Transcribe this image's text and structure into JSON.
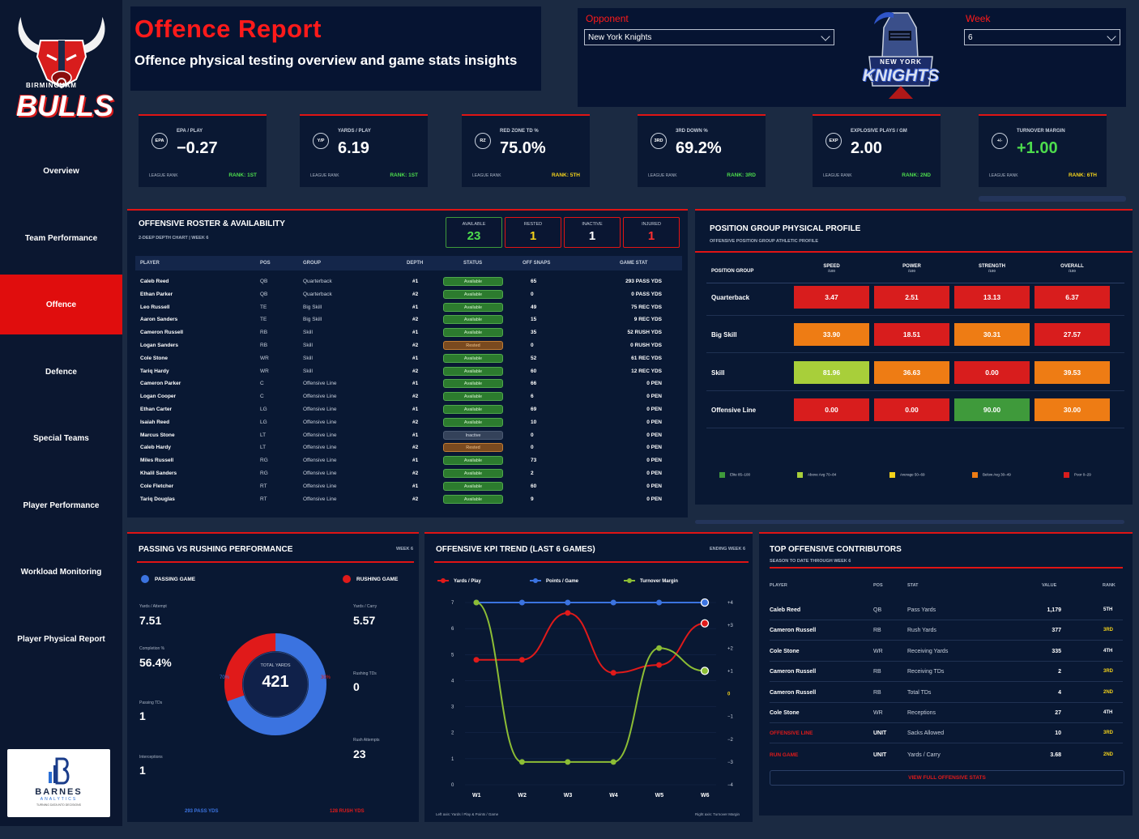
{
  "sidebar": {
    "team_name": "BIRMINGHAM",
    "team_word": "BULLS",
    "items": [
      {
        "label": "Overview"
      },
      {
        "label": "Team Performance"
      },
      {
        "label": "Offence"
      },
      {
        "label": "Defence"
      },
      {
        "label": "Special Teams"
      },
      {
        "label": "Player Performance"
      },
      {
        "label": "Workload Monitoring"
      },
      {
        "label": "Player Physical Report"
      }
    ],
    "brand": "BARNES",
    "brand_sub": "ANALYTICS",
    "brand_tag": "TURNING DATA INTO DECISIONS"
  },
  "header": {
    "title": "Offence Report",
    "subtitle": "Offence physical testing overview and game stats insights"
  },
  "filters": {
    "opponent_label": "Opponent",
    "opponent_value": "New York Knights",
    "week_label": "Week",
    "week_value": "6",
    "opponent_logo_text": "NEW YORK",
    "opponent_logo_word": "KNIGHTS"
  },
  "kpis": [
    {
      "icon": "EPA",
      "label": "EPA / PLAY",
      "value": "−0.27",
      "league_rank": "LEAGUE RANK",
      "rank": "RANK: 1ST",
      "rank_color": "green"
    },
    {
      "icon": "Y/P",
      "label": "YARDS / PLAY",
      "value": "6.19",
      "league_rank": "LEAGUE RANK",
      "rank": "RANK: 1ST",
      "rank_color": "green"
    },
    {
      "icon": "RZ",
      "label": "RED ZONE TD %",
      "value": "75.0%",
      "league_rank": "LEAGUE RANK",
      "rank": "RANK: 5TH",
      "rank_color": "yellow"
    },
    {
      "icon": "3RD",
      "label": "3RD DOWN %",
      "value": "69.2%",
      "league_rank": "LEAGUE RANK",
      "rank": "RANK: 3RD",
      "rank_color": "green"
    },
    {
      "icon": "EXP",
      "label": "EXPLOSIVE PLAYS / GM",
      "value": "2.00",
      "league_rank": "LEAGUE RANK",
      "rank": "RANK: 2ND",
      "rank_color": "green"
    },
    {
      "icon": "+/-",
      "label": "TURNOVER MARGIN",
      "value": "+1.00",
      "league_rank": "LEAGUE RANK",
      "rank": "RANK: 6TH",
      "rank_color": "yellow"
    }
  ],
  "roster": {
    "title": "OFFENSIVE ROSTER & AVAILABILITY",
    "subtitle": "2-DEEP DEPTH CHART | WEEK 6",
    "tiles": [
      {
        "label": "AVAILABLE",
        "value": "23",
        "color": "#4ddc4d"
      },
      {
        "label": "RESTED",
        "value": "1",
        "color": "#f3d21b"
      },
      {
        "label": "INACTIVE",
        "value": "1",
        "color": "#ffffff"
      },
      {
        "label": "INJURED",
        "value": "1",
        "color": "#ff3030"
      }
    ],
    "columns": [
      "PLAYER",
      "POS",
      "GROUP",
      "DEPTH",
      "STATUS",
      "OFF SNAPS",
      "GAME STAT"
    ],
    "rows": [
      {
        "player": "Caleb Reed",
        "pos": "QB",
        "group": "Quarterback",
        "depth": "#1",
        "status": "Available",
        "snaps": "65",
        "stat": "293 PASS YDS"
      },
      {
        "player": "Ethan Parker",
        "pos": "QB",
        "group": "Quarterback",
        "depth": "#2",
        "status": "Available",
        "snaps": "0",
        "stat": "0 PASS YDS"
      },
      {
        "player": "Leo Russell",
        "pos": "TE",
        "group": "Big Skill",
        "depth": "#1",
        "status": "Available",
        "snaps": "49",
        "stat": "75 REC YDS"
      },
      {
        "player": "Aaron Sanders",
        "pos": "TE",
        "group": "Big Skill",
        "depth": "#2",
        "status": "Available",
        "snaps": "15",
        "stat": "9 REC YDS"
      },
      {
        "player": "Cameron Russell",
        "pos": "RB",
        "group": "Skill",
        "depth": "#1",
        "status": "Available",
        "snaps": "35",
        "stat": "52 RUSH YDS"
      },
      {
        "player": "Logan Sanders",
        "pos": "RB",
        "group": "Skill",
        "depth": "#2",
        "status": "Rested",
        "snaps": "0",
        "stat": "0 RUSH YDS"
      },
      {
        "player": "Cole Stone",
        "pos": "WR",
        "group": "Skill",
        "depth": "#1",
        "status": "Available",
        "snaps": "52",
        "stat": "61 REC YDS"
      },
      {
        "player": "Tariq Hardy",
        "pos": "WR",
        "group": "Skill",
        "depth": "#2",
        "status": "Available",
        "snaps": "60",
        "stat": "12 REC YDS"
      },
      {
        "player": "Cameron Parker",
        "pos": "C",
        "group": "Offensive Line",
        "depth": "#1",
        "status": "Available",
        "snaps": "66",
        "stat": "0 PEN"
      },
      {
        "player": "Logan Cooper",
        "pos": "C",
        "group": "Offensive Line",
        "depth": "#2",
        "status": "Available",
        "snaps": "6",
        "stat": "0 PEN"
      },
      {
        "player": "Ethan Carter",
        "pos": "LG",
        "group": "Offensive Line",
        "depth": "#1",
        "status": "Available",
        "snaps": "69",
        "stat": "0 PEN"
      },
      {
        "player": "Isaiah Reed",
        "pos": "LG",
        "group": "Offensive Line",
        "depth": "#2",
        "status": "Available",
        "snaps": "10",
        "stat": "0 PEN"
      },
      {
        "player": "Marcus Stone",
        "pos": "LT",
        "group": "Offensive Line",
        "depth": "#1",
        "status": "Inactive",
        "snaps": "0",
        "stat": "0 PEN"
      },
      {
        "player": "Caleb Hardy",
        "pos": "LT",
        "group": "Offensive Line",
        "depth": "#2",
        "status": "Rested",
        "snaps": "0",
        "stat": "0 PEN"
      },
      {
        "player": "Miles Russell",
        "pos": "RG",
        "group": "Offensive Line",
        "depth": "#1",
        "status": "Available",
        "snaps": "73",
        "stat": "0 PEN"
      },
      {
        "player": "Khalil Sanders",
        "pos": "RG",
        "group": "Offensive Line",
        "depth": "#2",
        "status": "Available",
        "snaps": "2",
        "stat": "0 PEN"
      },
      {
        "player": "Cole Fletcher",
        "pos": "RT",
        "group": "Offensive Line",
        "depth": "#1",
        "status": "Available",
        "snaps": "60",
        "stat": "0 PEN"
      },
      {
        "player": "Tariq Douglas",
        "pos": "RT",
        "group": "Offensive Line",
        "depth": "#2",
        "status": "Available",
        "snaps": "9",
        "stat": "0 PEN"
      }
    ]
  },
  "physical": {
    "title": "POSITION GROUP PHYSICAL PROFILE",
    "subtitle": "OFFENSIVE POSITION GROUP ATHLETIC PROFILE",
    "group_header": "POSITION GROUP",
    "columns": [
      {
        "label": "SPEED",
        "sub": "/100"
      },
      {
        "label": "POWER",
        "sub": "/100"
      },
      {
        "label": "STRENGTH",
        "sub": "/100"
      },
      {
        "label": "OVERALL",
        "sub": "/100"
      }
    ],
    "rows": [
      {
        "group": "Quarterback",
        "values": [
          "3.47",
          "2.51",
          "13.13",
          "6.37"
        ],
        "colors": [
          "#d81d1d",
          "#d81d1d",
          "#d81d1d",
          "#d81d1d"
        ]
      },
      {
        "group": "Big Skill",
        "values": [
          "33.90",
          "18.51",
          "30.31",
          "27.57"
        ],
        "colors": [
          "#ee7c14",
          "#d81d1d",
          "#ee7c14",
          "#d81d1d"
        ]
      },
      {
        "group": "Skill",
        "values": [
          "81.96",
          "36.63",
          "0.00",
          "39.53"
        ],
        "colors": [
          "#a8cf3a",
          "#ee7c14",
          "#d81d1d",
          "#ee7c14"
        ]
      },
      {
        "group": "Offensive Line",
        "values": [
          "0.00",
          "0.00",
          "90.00",
          "30.00"
        ],
        "colors": [
          "#d81d1d",
          "#d81d1d",
          "#3f9a3b",
          "#ee7c14"
        ]
      }
    ],
    "legend": [
      {
        "label": "Elite 85–100",
        "color": "#3f9a3b"
      },
      {
        "label": "Above Avg 70–84",
        "color": "#a8cf3a"
      },
      {
        "label": "Average 50–69",
        "color": "#f3d21b"
      },
      {
        "label": "Below Avg 30–49",
        "color": "#ee7c14"
      },
      {
        "label": "Poor 0–29",
        "color": "#d81d1d"
      }
    ]
  },
  "passrush": {
    "title": "PASSING VS RUSHING PERFORMANCE",
    "week": "WEEK 6",
    "passing_label": "PASSING GAME",
    "rushing_label": "RUSHING GAME",
    "left_metrics": [
      {
        "label": "Yards / Attempt",
        "value": "7.51"
      },
      {
        "label": "Completion %",
        "value": "56.4%"
      },
      {
        "label": "Passing TDs",
        "value": "1"
      },
      {
        "label": "Interceptions",
        "value": "1"
      }
    ],
    "right_metrics": [
      {
        "label": "Yards / Carry",
        "value": "5.57"
      },
      {
        "label": "Rushing TDs",
        "value": "0"
      },
      {
        "label": "Rush Attempts",
        "value": "23"
      }
    ],
    "donut_label": "TOTAL YARDS",
    "donut_total": "421",
    "pass_pct_label": "70%",
    "rush_pct_label": "30%",
    "pass_share": 0.696,
    "pass_yds": "293 PASS YDS",
    "rush_yds": "128 RUSH YDS",
    "colors": {
      "pass": "#3b73e0",
      "rush": "#e01a1a"
    }
  },
  "trend": {
    "title": "OFFENSIVE KPI TREND (LAST 6 GAMES)",
    "ending": "ENDING WEEK 6",
    "footer_left": "Left axis: Yards / Play & Points / Game",
    "footer_right": "Right axis: Turnover Margin",
    "left_ticks": [
      "7",
      "6",
      "5",
      "4",
      "3",
      "2",
      "1",
      "0"
    ],
    "right_ticks": [
      "+4",
      "+3",
      "+2",
      "+1",
      "0",
      "−1",
      "−2",
      "−3",
      "−4"
    ]
  },
  "chart_data": {
    "type": "line",
    "x": [
      "W1",
      "W2",
      "W3",
      "W4",
      "W5",
      "W6"
    ],
    "series": [
      {
        "name": "Yards / Play",
        "axis": "left",
        "color": "#e01a1a",
        "values": [
          4.8,
          4.8,
          6.6,
          4.3,
          4.6,
          6.2
        ]
      },
      {
        "name": "Points / Game",
        "axis": "left",
        "color": "#3b73e0",
        "values": [
          7,
          7,
          7,
          7,
          7,
          7
        ]
      },
      {
        "name": "Turnover Margin",
        "axis": "right",
        "color": "#8cbd35",
        "values": [
          4,
          -3,
          -3,
          -3,
          2,
          1
        ]
      }
    ],
    "ylim_left": [
      0,
      7
    ],
    "ylim_right": [
      -4,
      4
    ]
  },
  "contributors": {
    "title": "TOP OFFENSIVE CONTRIBUTORS",
    "subtitle": "SEASON TO DATE THROUGH WEEK 6",
    "columns": [
      "PLAYER",
      "POS",
      "STAT",
      "VALUE",
      "RANK"
    ],
    "rows": [
      {
        "player": "Caleb Reed",
        "pos": "QB",
        "stat": "Pass Yards",
        "value": "1,179",
        "rank": "5TH",
        "rank_color": "#ffffff",
        "red": false
      },
      {
        "player": "Cameron Russell",
        "pos": "RB",
        "stat": "Rush Yards",
        "value": "377",
        "rank": "3RD",
        "rank_color": "#f3d21b",
        "red": false
      },
      {
        "player": "Cole Stone",
        "pos": "WR",
        "stat": "Receiving Yards",
        "value": "335",
        "rank": "4TH",
        "rank_color": "#ffffff",
        "red": false
      },
      {
        "player": "Cameron Russell",
        "pos": "RB",
        "stat": "Receiving TDs",
        "value": "2",
        "rank": "3RD",
        "rank_color": "#f3d21b",
        "red": false
      },
      {
        "player": "Cameron Russell",
        "pos": "RB",
        "stat": "Total TDs",
        "value": "4",
        "rank": "2ND",
        "rank_color": "#f3d21b",
        "red": false
      },
      {
        "player": "Cole Stone",
        "pos": "WR",
        "stat": "Receptions",
        "value": "27",
        "rank": "4TH",
        "rank_color": "#ffffff",
        "red": false
      },
      {
        "player": "OFFENSIVE LINE",
        "pos": "UNIT",
        "stat": "Sacks Allowed",
        "value": "10",
        "rank": "3RD",
        "rank_color": "#f3d21b",
        "red": true
      },
      {
        "player": "RUN GAME",
        "pos": "UNIT",
        "stat": "Yards / Carry",
        "value": "3.68",
        "rank": "2ND",
        "rank_color": "#f3d21b",
        "red": true
      }
    ],
    "button": "VIEW FULL OFFENSIVE STATS"
  }
}
